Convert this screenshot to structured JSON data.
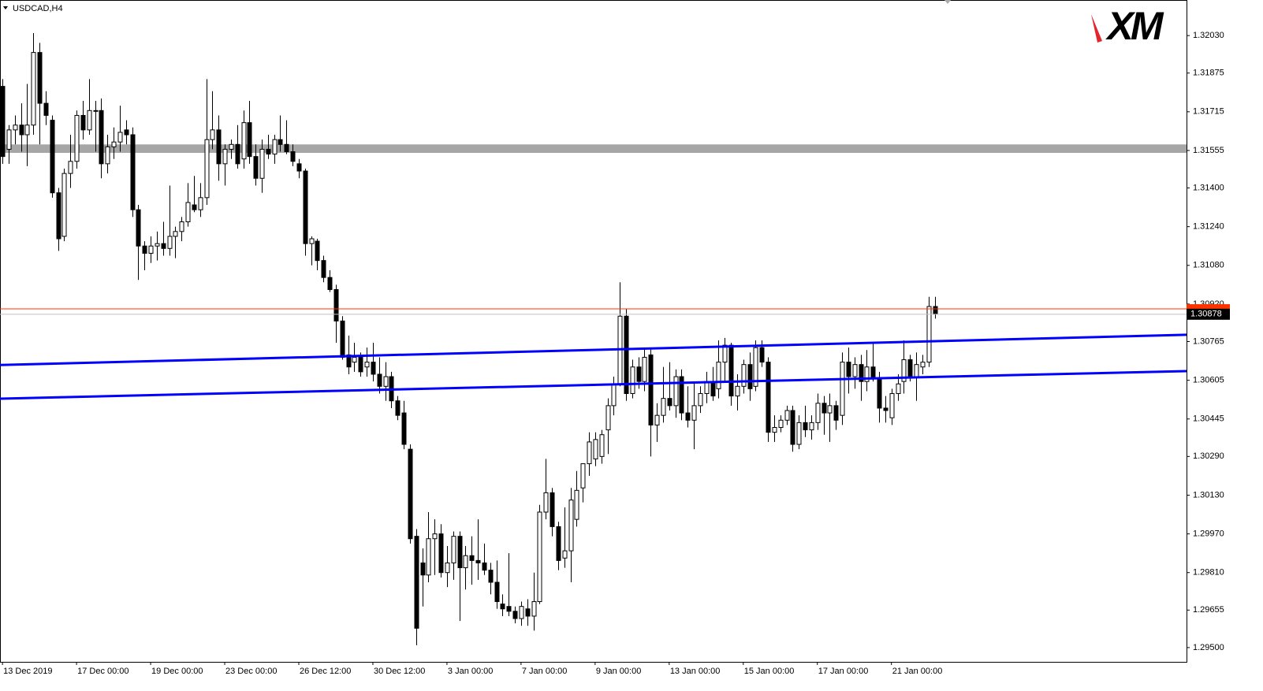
{
  "chart_data": {
    "type": "candlestick",
    "title": "USDCAD,H4",
    "logo": "XM",
    "categories": [
      "13 Dec 2019",
      null,
      null,
      null,
      null,
      null,
      null,
      null,
      null,
      null,
      null,
      null,
      "17 Dec 00:00",
      null,
      null,
      null,
      null,
      null,
      null,
      null,
      null,
      null,
      null,
      null,
      "19 Dec 00:00",
      null,
      null,
      null,
      null,
      null,
      null,
      null,
      null,
      null,
      null,
      null,
      "23 Dec 00:00",
      null,
      null,
      null,
      null,
      null,
      null,
      null,
      null,
      null,
      null,
      null,
      "26 Dec 12:00",
      null,
      null,
      null,
      null,
      null,
      null,
      null,
      null,
      null,
      null,
      null,
      "30 Dec 12:00",
      null,
      null,
      null,
      null,
      null,
      null,
      null,
      null,
      null,
      null,
      null,
      "3 Jan 00:00",
      null,
      null,
      null,
      null,
      null,
      null,
      null,
      null,
      null,
      null,
      null,
      "7 Jan 00:00",
      null,
      null,
      null,
      null,
      null,
      null,
      null,
      null,
      null,
      null,
      null,
      "9 Jan 00:00",
      null,
      null,
      null,
      null,
      null,
      null,
      null,
      null,
      null,
      null,
      null,
      "13 Jan 00:00",
      null,
      null,
      null,
      null,
      null,
      null,
      null,
      null,
      null,
      null,
      null,
      "15 Jan 00:00",
      null,
      null,
      null,
      null,
      null,
      null,
      null,
      null,
      null,
      null,
      null,
      "17 Jan 00:00",
      null,
      null,
      null,
      null,
      null,
      null,
      null,
      null,
      null,
      null,
      null,
      "21 Jan 00:00",
      null,
      null,
      null,
      null,
      null,
      null,
      null
    ],
    "ohlc": [
      [
        1.3182,
        1.3185,
        1.315,
        1.3153
      ],
      [
        1.3156,
        1.3166,
        1.315,
        1.3164
      ],
      [
        1.3164,
        1.317,
        1.3158,
        1.3166
      ],
      [
        1.3166,
        1.3175,
        1.3155,
        1.3162
      ],
      [
        1.3162,
        1.3183,
        1.3149,
        1.3166
      ],
      [
        1.3166,
        1.3204,
        1.3162,
        1.3196
      ],
      [
        1.3196,
        1.32,
        1.3158,
        1.3175
      ],
      [
        1.3175,
        1.318,
        1.3166,
        1.317
      ],
      [
        1.3168,
        1.317,
        1.3136,
        1.3138
      ],
      [
        1.3138,
        1.314,
        1.3114,
        1.3119
      ],
      [
        1.312,
        1.3148,
        1.3118,
        1.3146
      ],
      [
        1.3146,
        1.3162,
        1.314,
        1.3151
      ],
      [
        1.3151,
        1.3172,
        1.3148,
        1.317
      ],
      [
        1.317,
        1.3176,
        1.316,
        1.3164
      ],
      [
        1.3164,
        1.3185,
        1.3162,
        1.3172
      ],
      [
        1.3172,
        1.3176,
        1.3155,
        1.3172
      ],
      [
        1.3172,
        1.3177,
        1.3144,
        1.315
      ],
      [
        1.315,
        1.3162,
        1.3146,
        1.3157
      ],
      [
        1.3157,
        1.3165,
        1.3152,
        1.3159
      ],
      [
        1.3159,
        1.3174,
        1.3155,
        1.3163
      ],
      [
        1.3164,
        1.3168,
        1.3158,
        1.3162
      ],
      [
        1.3162,
        1.3165,
        1.3128,
        1.3131
      ],
      [
        1.3131,
        1.3133,
        1.3102,
        1.3116
      ],
      [
        1.3116,
        1.3118,
        1.3106,
        1.3113
      ],
      [
        1.3113,
        1.312,
        1.3109,
        1.3116
      ],
      [
        1.3116,
        1.3122,
        1.311,
        1.3117
      ],
      [
        1.3117,
        1.3126,
        1.3112,
        1.3115
      ],
      [
        1.3115,
        1.3141,
        1.3112,
        1.312
      ],
      [
        1.312,
        1.3124,
        1.3111,
        1.3122
      ],
      [
        1.3122,
        1.3128,
        1.3118,
        1.3126
      ],
      [
        1.3126,
        1.3142,
        1.3124,
        1.3134
      ],
      [
        1.3133,
        1.3145,
        1.313,
        1.3131
      ],
      [
        1.3131,
        1.3142,
        1.3128,
        1.3136
      ],
      [
        1.3136,
        1.3185,
        1.3133,
        1.316
      ],
      [
        1.316,
        1.318,
        1.3156,
        1.3164
      ],
      [
        1.3164,
        1.317,
        1.3143,
        1.315
      ],
      [
        1.315,
        1.3158,
        1.3141,
        1.3156
      ],
      [
        1.3156,
        1.316,
        1.3152,
        1.3158
      ],
      [
        1.3158,
        1.3166,
        1.3148,
        1.315
      ],
      [
        1.3152,
        1.3172,
        1.3148,
        1.3167
      ],
      [
        1.3167,
        1.3176,
        1.315,
        1.3153
      ],
      [
        1.3153,
        1.3158,
        1.3141,
        1.3144
      ],
      [
        1.3144,
        1.316,
        1.3138,
        1.3156
      ],
      [
        1.3156,
        1.3162,
        1.3152,
        1.3154
      ],
      [
        1.3154,
        1.3162,
        1.315,
        1.316
      ],
      [
        1.316,
        1.317,
        1.3155,
        1.3158
      ],
      [
        1.3158,
        1.3168,
        1.3154,
        1.3155
      ],
      [
        1.3155,
        1.3158,
        1.3149,
        1.3151
      ],
      [
        1.315,
        1.3152,
        1.3144,
        1.3147
      ],
      [
        1.3147,
        1.3148,
        1.3112,
        1.3117
      ],
      [
        1.3117,
        1.312,
        1.3108,
        1.3119
      ],
      [
        1.3118,
        1.3119,
        1.3106,
        1.311
      ],
      [
        1.311,
        1.3112,
        1.3101,
        1.3103
      ],
      [
        1.3103,
        1.3106,
        1.3097,
        1.3098
      ],
      [
        1.3098,
        1.31,
        1.3076,
        1.3085
      ],
      [
        1.3085,
        1.3087,
        1.3069,
        1.307
      ],
      [
        1.3071,
        1.3079,
        1.3063,
        1.3066
      ],
      [
        1.3068,
        1.3076,
        1.3064,
        1.307
      ],
      [
        1.307,
        1.3072,
        1.3062,
        1.3064
      ],
      [
        1.3066,
        1.3074,
        1.3062,
        1.3068
      ],
      [
        1.3068,
        1.3076,
        1.306,
        1.3063
      ],
      [
        1.3063,
        1.307,
        1.3055,
        1.3058
      ],
      [
        1.3058,
        1.3068,
        1.3052,
        1.3062
      ],
      [
        1.3062,
        1.3064,
        1.3049,
        1.3052
      ],
      [
        1.3052,
        1.3054,
        1.3044,
        1.3046
      ],
      [
        1.3047,
        1.3052,
        1.3032,
        1.3034
      ],
      [
        1.3032,
        1.3034,
        1.2993,
        1.2995
      ],
      [
        1.2996,
        1.2999,
        1.2951,
        1.2958
      ],
      [
        1.2985,
        1.2991,
        1.2967,
        1.298
      ],
      [
        1.298,
        1.3006,
        1.2977,
        1.2995
      ],
      [
        1.2995,
        1.3003,
        1.298,
        1.2997
      ],
      [
        1.2997,
        1.3001,
        1.2979,
        1.2981
      ],
      [
        1.2981,
        1.2992,
        1.2975,
        1.2985
      ],
      [
        1.2985,
        1.2998,
        1.2978,
        1.2996
      ],
      [
        1.2996,
        1.2998,
        1.2961,
        1.2983
      ],
      [
        1.2983,
        1.2992,
        1.2974,
        1.2988
      ],
      [
        1.2988,
        1.2996,
        1.2976,
        1.2986
      ],
      [
        1.2986,
        1.3003,
        1.2978,
        1.2985
      ],
      [
        1.2985,
        1.2993,
        1.298,
        1.2982
      ],
      [
        1.2982,
        1.2985,
        1.2972,
        1.2977
      ],
      [
        1.2977,
        1.2986,
        1.2966,
        1.2969
      ],
      [
        1.2968,
        1.2972,
        1.2963,
        1.2966
      ],
      [
        1.2967,
        1.2989,
        1.2963,
        1.2965
      ],
      [
        1.2965,
        1.2967,
        1.296,
        1.2962
      ],
      [
        1.2962,
        1.2969,
        1.2959,
        1.2967
      ],
      [
        1.2966,
        1.297,
        1.2959,
        1.2963
      ],
      [
        1.2963,
        1.2981,
        1.2957,
        1.2969
      ],
      [
        1.2969,
        1.3009,
        1.2968,
        1.3006
      ],
      [
        1.3006,
        1.3028,
        1.3003,
        1.3014
      ],
      [
        1.3014,
        1.3016,
        1.2996,
        1.3
      ],
      [
        1.3,
        1.3002,
        1.2982,
        1.2986
      ],
      [
        1.2987,
        1.3008,
        1.2983,
        1.299
      ],
      [
        1.299,
        1.3016,
        1.2977,
        1.3011
      ],
      [
        1.3003,
        1.3023,
        1.3,
        1.3015
      ],
      [
        1.3016,
        1.3026,
        1.301,
        1.3026
      ],
      [
        1.3026,
        1.3039,
        1.3021,
        1.3035
      ],
      [
        1.3028,
        1.3039,
        1.3025,
        1.3036
      ],
      [
        1.3029,
        1.304,
        1.3026,
        1.3038
      ],
      [
        1.304,
        1.3053,
        1.303,
        1.305
      ],
      [
        1.305,
        1.3062,
        1.3046,
        1.3059
      ],
      [
        1.3059,
        1.3101,
        1.3058,
        1.3087
      ],
      [
        1.3087,
        1.309,
        1.3052,
        1.3055
      ],
      [
        1.3055,
        1.3069,
        1.3053,
        1.3066
      ],
      [
        1.3066,
        1.307,
        1.3057,
        1.306
      ],
      [
        1.306,
        1.3074,
        1.3056,
        1.307
      ],
      [
        1.3071,
        1.3074,
        1.3029,
        1.3042
      ],
      [
        1.3042,
        1.3051,
        1.3035,
        1.3046
      ],
      [
        1.3046,
        1.3066,
        1.3043,
        1.3053
      ],
      [
        1.3053,
        1.3068,
        1.3048,
        1.305
      ],
      [
        1.305,
        1.3065,
        1.3045,
        1.3062
      ],
      [
        1.3062,
        1.3065,
        1.3044,
        1.3047
      ],
      [
        1.3047,
        1.3058,
        1.3041,
        1.3044
      ],
      [
        1.3044,
        1.306,
        1.3032,
        1.305
      ],
      [
        1.305,
        1.3058,
        1.3047,
        1.3055
      ],
      [
        1.3055,
        1.3064,
        1.3051,
        1.306
      ],
      [
        1.306,
        1.3066,
        1.3052,
        1.3054
      ],
      [
        1.3057,
        1.3077,
        1.3053,
        1.3068
      ],
      [
        1.3068,
        1.3078,
        1.306,
        1.3075
      ],
      [
        1.3075,
        1.3076,
        1.305,
        1.3054
      ],
      [
        1.3054,
        1.3063,
        1.3048,
        1.3058
      ],
      [
        1.3058,
        1.3069,
        1.3055,
        1.3067
      ],
      [
        1.3067,
        1.3072,
        1.3052,
        1.3057
      ],
      [
        1.3058,
        1.3077,
        1.3056,
        1.3074
      ],
      [
        1.3074,
        1.3077,
        1.3066,
        1.3068
      ],
      [
        1.3068,
        1.307,
        1.3035,
        1.3039
      ],
      [
        1.3039,
        1.3046,
        1.3035,
        1.3041
      ],
      [
        1.3041,
        1.3046,
        1.3039,
        1.3044
      ],
      [
        1.3044,
        1.305,
        1.3042,
        1.3048
      ],
      [
        1.3048,
        1.305,
        1.3031,
        1.3034
      ],
      [
        1.3034,
        1.3046,
        1.3032,
        1.3043
      ],
      [
        1.3043,
        1.305,
        1.3037,
        1.304
      ],
      [
        1.304,
        1.3046,
        1.3036,
        1.3043
      ],
      [
        1.3043,
        1.3055,
        1.304,
        1.3051
      ],
      [
        1.3051,
        1.3054,
        1.3038,
        1.3047
      ],
      [
        1.3047,
        1.3055,
        1.3035,
        1.305
      ],
      [
        1.305,
        1.3052,
        1.304,
        1.3044
      ],
      [
        1.3046,
        1.3072,
        1.3042,
        1.3068
      ],
      [
        1.3068,
        1.3074,
        1.3055,
        1.3062
      ],
      [
        1.3062,
        1.307,
        1.3057,
        1.3067
      ],
      [
        1.3067,
        1.3071,
        1.3052,
        1.306
      ],
      [
        1.306,
        1.3073,
        1.3056,
        1.3066
      ],
      [
        1.3066,
        1.3076,
        1.306,
        1.3061
      ],
      [
        1.3061,
        1.3064,
        1.3043,
        1.3049
      ],
      [
        1.3049,
        1.3054,
        1.3043,
        1.3048
      ],
      [
        1.3045,
        1.3057,
        1.3042,
        1.3055
      ],
      [
        1.3055,
        1.3063,
        1.3052,
        1.3059
      ],
      [
        1.306,
        1.3077,
        1.3055,
        1.3069
      ],
      [
        1.3069,
        1.3071,
        1.306,
        1.3062
      ],
      [
        1.3062,
        1.3072,
        1.3052,
        1.3067
      ],
      [
        1.3066,
        1.3071,
        1.3063,
        1.3068
      ],
      [
        1.3068,
        1.3095,
        1.3066,
        1.3091
      ],
      [
        1.3091,
        1.3095,
        1.3086,
        1.3088
      ]
    ],
    "bull_color": "#ffffff",
    "bear_color": "#000000",
    "xlim": [
      -0.4,
      191.8
    ],
    "ylim": [
      1.29441,
      1.32177
    ],
    "yticks": [
      {
        "value": 1.3203,
        "label": "1.32030"
      },
      1.31875,
      1.31715,
      1.31555,
      {
        "value": 1.314,
        "label": "1.31400"
      },
      {
        "value": 1.3124,
        "label": "1.31240"
      },
      {
        "value": 1.3108,
        "label": "1.31080"
      },
      {
        "value": 1.3092,
        "label": "1.30920"
      },
      1.30765,
      1.30605,
      1.30445,
      {
        "value": 1.3029,
        "label": "1.30290"
      },
      {
        "value": 1.3013,
        "label": "1.30130"
      },
      {
        "value": 1.2997,
        "label": "1.29970"
      },
      {
        "value": 1.2981,
        "label": "1.29810"
      },
      1.29655,
      {
        "value": 1.295,
        "label": "1.29500"
      }
    ],
    "zones": [
      {
        "from": 1.31545,
        "to": 1.3158,
        "color": "#a6a6a6"
      }
    ],
    "trendlines": [
      {
        "points": [
          [
            -0.4,
            1.30668
          ],
          [
            191.8,
            1.30793
          ]
        ],
        "color": "#0000ff"
      },
      {
        "points": [
          [
            -0.4,
            1.30529
          ],
          [
            191.8,
            1.30643
          ]
        ],
        "color": "#0000ff"
      }
    ],
    "ask_price": 1.309,
    "ask_color": "#ff3300",
    "bid_price": 1.30878
  }
}
